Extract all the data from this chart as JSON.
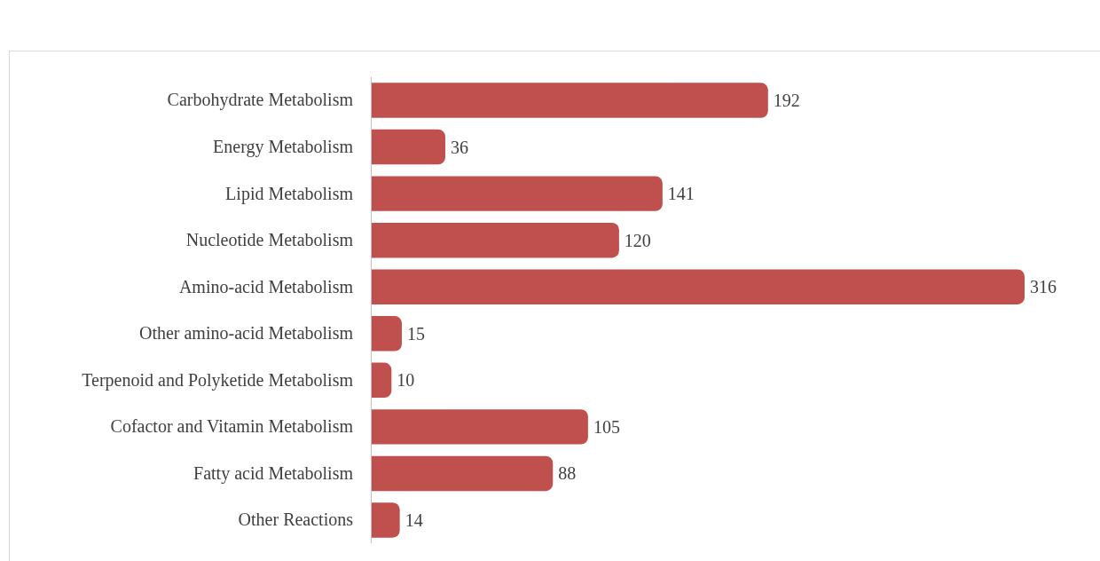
{
  "chart_data": {
    "type": "bar",
    "orientation": "horizontal",
    "categories": [
      "Carbohydrate Metabolism",
      "Energy Metabolism",
      "Lipid Metabolism",
      "Nucleotide Metabolism",
      "Amino-acid Metabolism",
      "Other amino-acid Metabolism",
      "Terpenoid and Polyketide Metabolism",
      "Cofactor and Vitamin Metabolism",
      "Fatty acid Metabolism",
      "Other Reactions"
    ],
    "values": [
      192,
      36,
      141,
      120,
      316,
      15,
      10,
      105,
      88,
      14
    ],
    "color": "#c0504d",
    "data_labels": true
  }
}
